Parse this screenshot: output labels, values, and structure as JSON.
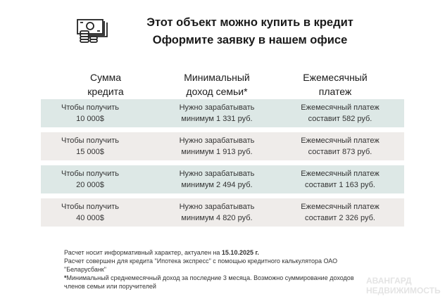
{
  "header": {
    "icon": "money-stack-coins-icon",
    "title_line1": "Этот объект можно купить в кредит",
    "title_line2": "Оформите заявку в нашем офисе"
  },
  "table": {
    "columns": [
      "Сумма кредита",
      "Минимальный доход семьи*",
      "Ежемесячный платеж"
    ],
    "column_lines": [
      [
        "Сумма",
        "кредита"
      ],
      [
        "Минимальный",
        "доход семьи*"
      ],
      [
        "Ежемесячный",
        "платеж"
      ]
    ],
    "rows": [
      {
        "amount_l1": "Чтобы получить",
        "amount_l2": "10 000$",
        "income_l1": "Нужно зарабатывать",
        "income_l2": "минимум 1 331 руб.",
        "pay_l1": "Ежемесячный платеж",
        "pay_l2": "составит 582 руб."
      },
      {
        "amount_l1": "Чтобы получить",
        "amount_l2": "15 000$",
        "income_l1": "Нужно зарабатывать",
        "income_l2": "минимум 1 913 руб.",
        "pay_l1": "Ежемесячный платеж",
        "pay_l2": "составит 873 руб."
      },
      {
        "amount_l1": "Чтобы получить",
        "amount_l2": "20 000$",
        "income_l1": "Нужно зарабатывать",
        "income_l2": "минимум 2 494 руб.",
        "pay_l1": "Ежемесячный платеж",
        "pay_l2": "составит 1 163 руб."
      },
      {
        "amount_l1": "Чтобы получить",
        "amount_l2": "40 000$",
        "income_l1": "Нужно зарабатывать",
        "income_l2": "минимум 4 820 руб.",
        "pay_l1": "Ежемесячный платеж",
        "pay_l2": "составит 2 326 руб."
      }
    ],
    "row_colors": [
      "#dde8e6",
      "#efecea",
      "#dde8e6",
      "#efecea"
    ]
  },
  "notes": {
    "line1_prefix": "Расчет носит информативный характер, актуален на ",
    "line1_date": "15.10.2025 г.",
    "line2": "Расчет совершен для кредита \"Ипотека экспресс\" с помощью кредитного калькулятора ОАО \"Беларусбанк\"",
    "line3_mark": "*",
    "line3": "Минимальный среднемесячный доход за последние 3 месяца. Возможно суммирование доходов членов семьи или поручителей"
  },
  "watermark": {
    "line1": "АВАНГАРД",
    "line2": "НЕДВИЖИМОСТЬ"
  }
}
